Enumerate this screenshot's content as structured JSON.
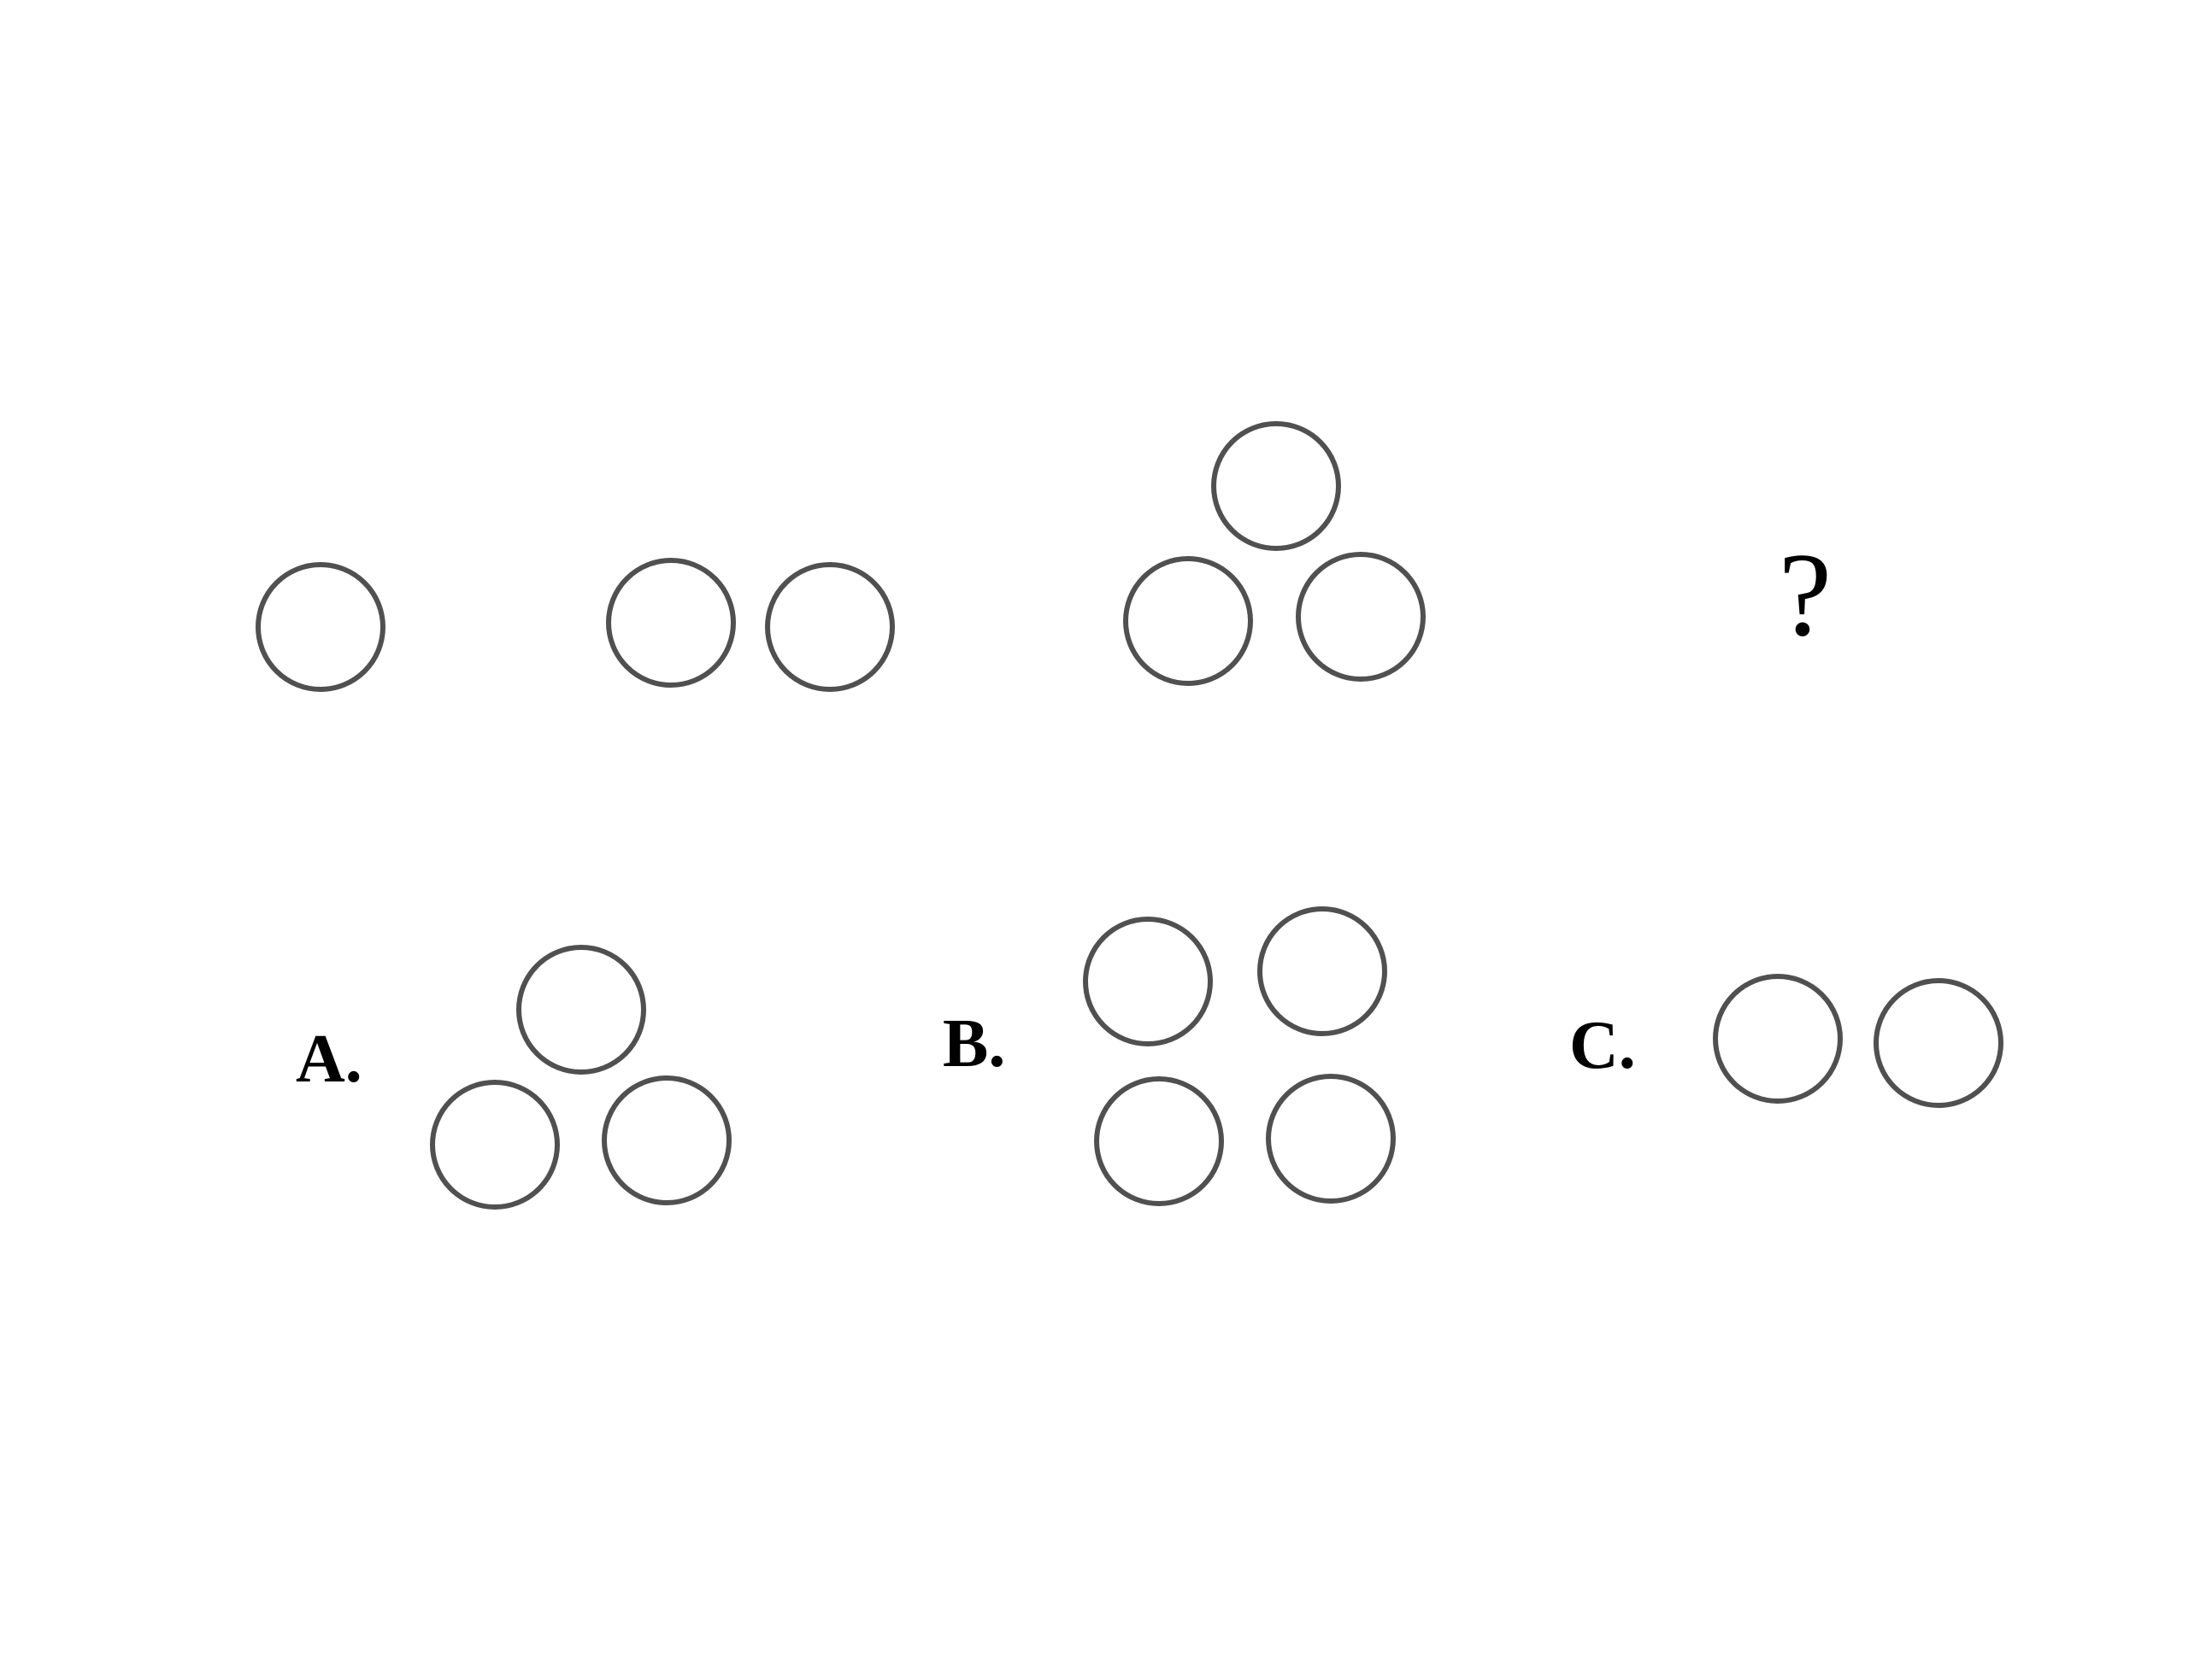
{
  "sequence": {
    "items": [
      {
        "circle_count": 1
      },
      {
        "circle_count": 2
      },
      {
        "circle_count": 3
      }
    ],
    "unknown_symbol": "?"
  },
  "options": [
    {
      "label": "A.",
      "circle_count": 3
    },
    {
      "label": "B.",
      "circle_count": 4
    },
    {
      "label": "C.",
      "circle_count": 2
    }
  ],
  "colors": {
    "circle_stroke": "#505050",
    "text": "#000000",
    "background": "#ffffff"
  }
}
